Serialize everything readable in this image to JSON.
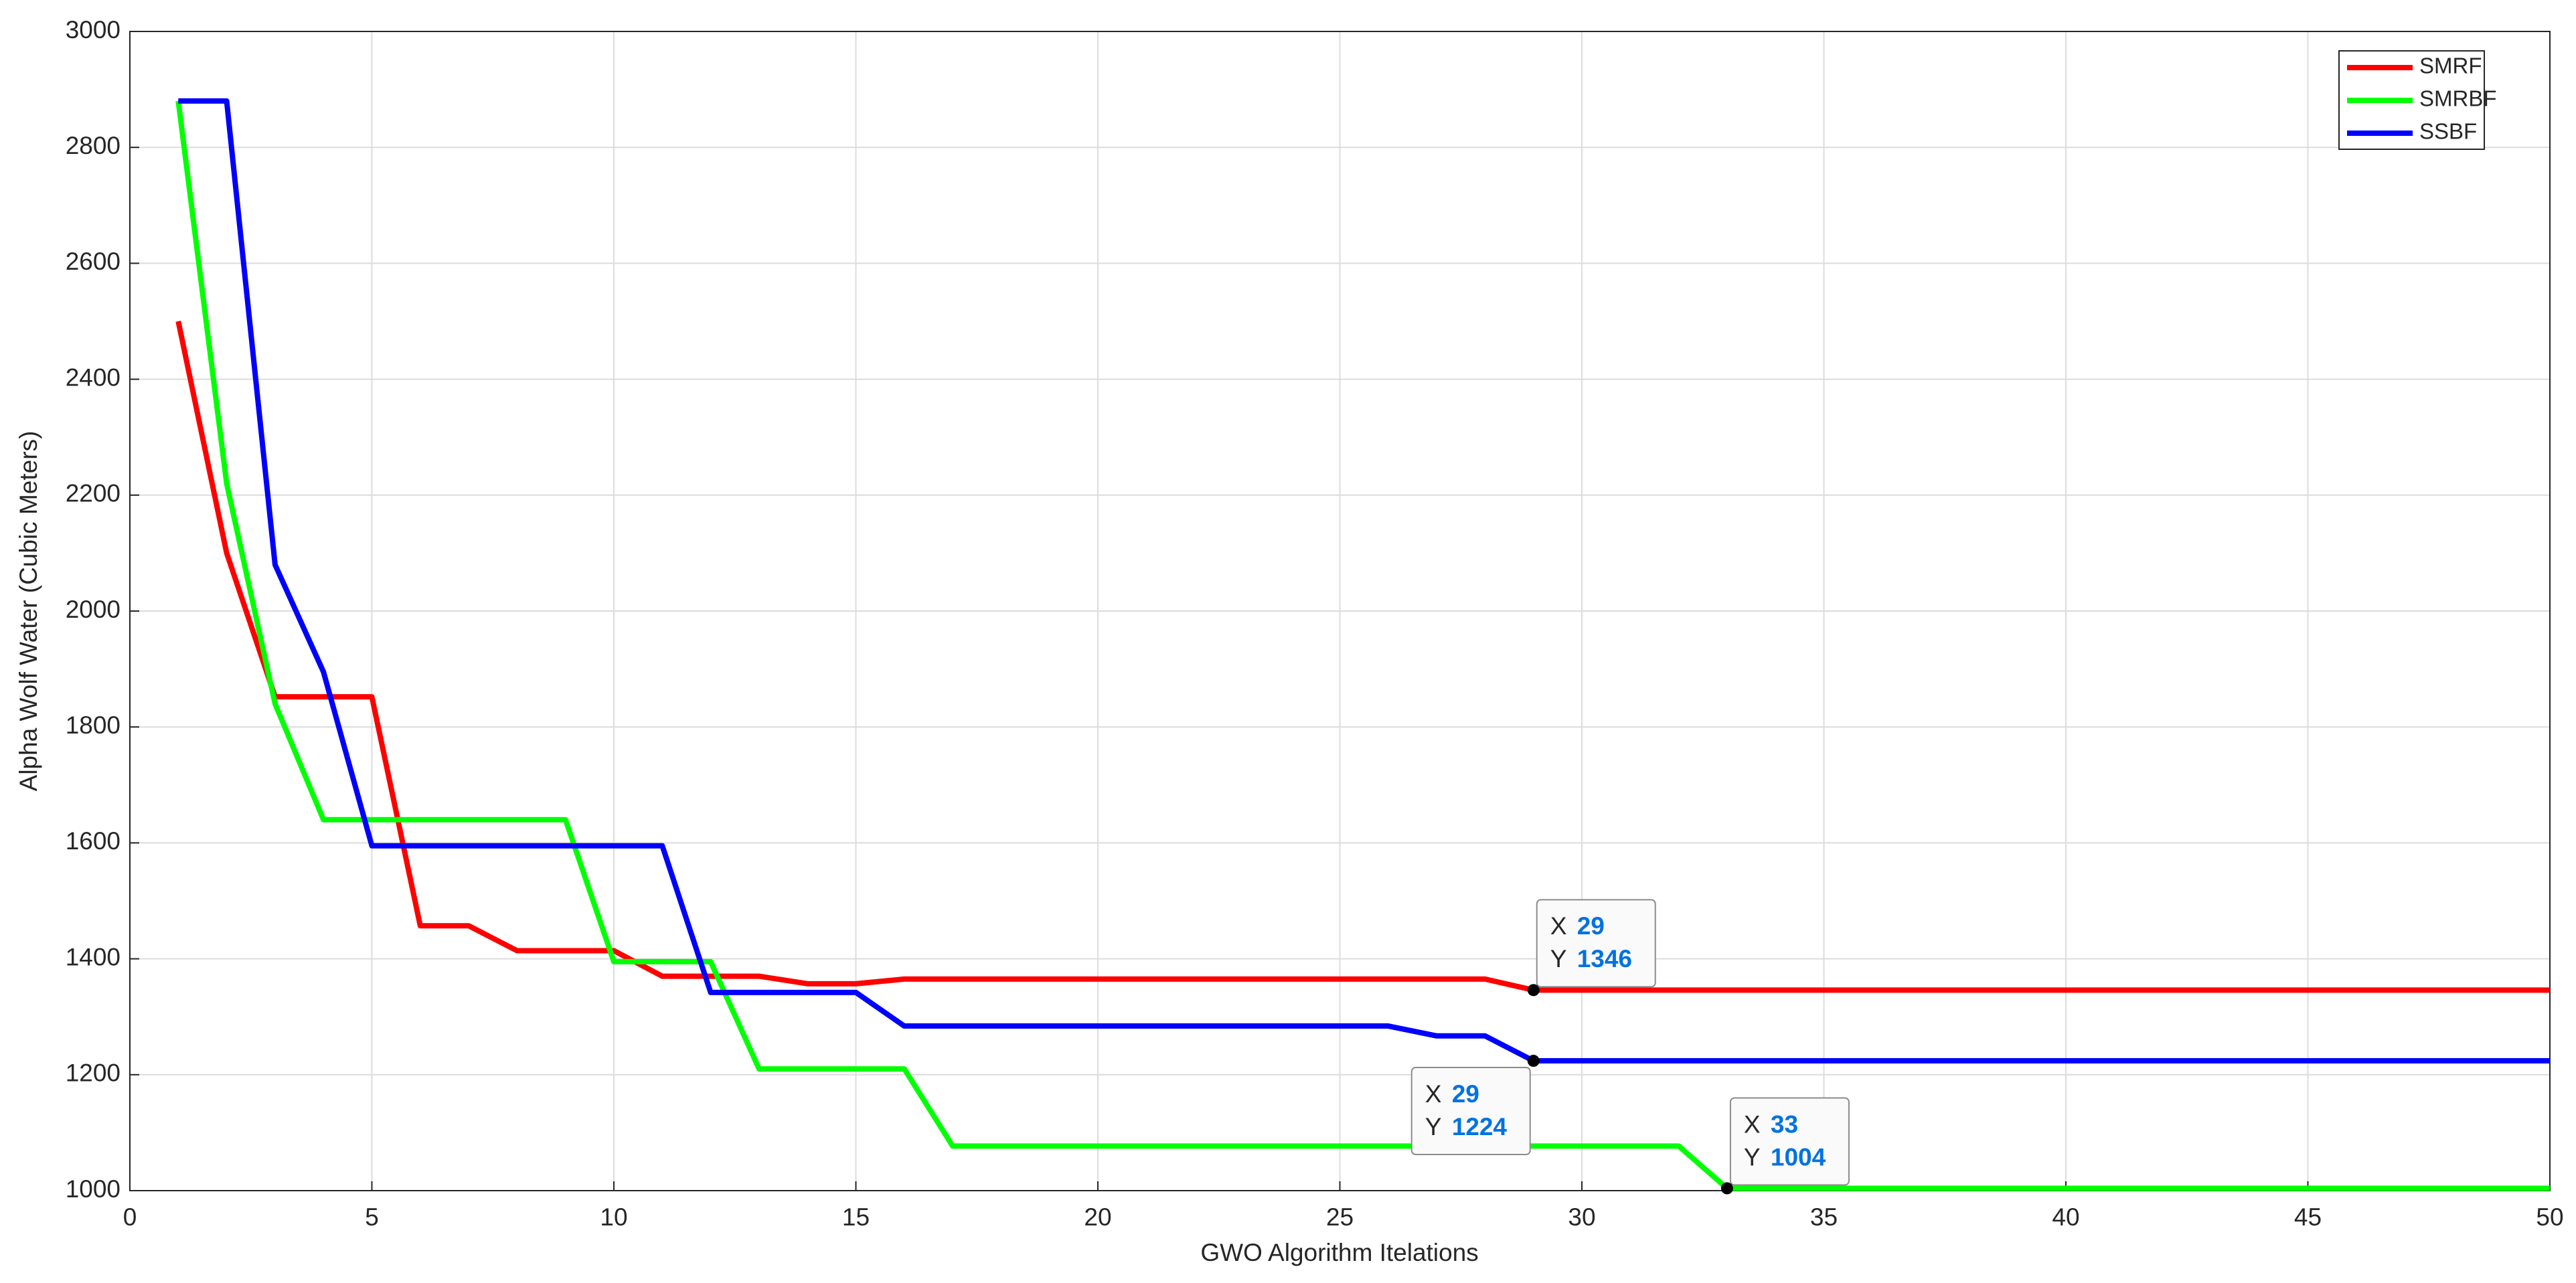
{
  "chart_data": {
    "type": "line",
    "x_label": "GWO Algorithm Itelations",
    "y_label": "Alpha Wolf Water (Cubic Meters)",
    "x": [
      1,
      2,
      3,
      4,
      5,
      6,
      7,
      8,
      9,
      10,
      11,
      12,
      13,
      14,
      15,
      16,
      17,
      18,
      19,
      20,
      21,
      22,
      23,
      24,
      25,
      26,
      27,
      28,
      29,
      30,
      31,
      32,
      33,
      34,
      35,
      36,
      37,
      38,
      39,
      40,
      41,
      42,
      43,
      44,
      45,
      46,
      47,
      48,
      49,
      50
    ],
    "series": [
      {
        "name": "SMRF",
        "color": "#ff0000",
        "values": [
          2500,
          2100,
          1852,
          1852,
          1852,
          1457,
          1457,
          1414,
          1414,
          1414,
          1370,
          1370,
          1370,
          1357,
          1357,
          1365,
          1365,
          1365,
          1365,
          1365,
          1365,
          1365,
          1365,
          1365,
          1365,
          1365,
          1365,
          1365,
          1346,
          1346,
          1346,
          1346,
          1346,
          1346,
          1346,
          1346,
          1346,
          1346,
          1346,
          1346,
          1346,
          1346,
          1346,
          1346,
          1346,
          1346,
          1346,
          1346,
          1346,
          1346
        ]
      },
      {
        "name": "SMRBF",
        "color": "#00ff00",
        "values": [
          2880,
          2220,
          1840,
          1640,
          1640,
          1640,
          1640,
          1640,
          1640,
          1395,
          1395,
          1395,
          1210,
          1210,
          1210,
          1210,
          1077,
          1077,
          1077,
          1077,
          1077,
          1077,
          1077,
          1077,
          1077,
          1077,
          1077,
          1077,
          1077,
          1077,
          1077,
          1077,
          1004,
          1004,
          1004,
          1004,
          1004,
          1004,
          1004,
          1004,
          1004,
          1004,
          1004,
          1004,
          1004,
          1004,
          1004,
          1004,
          1004,
          1004
        ]
      },
      {
        "name": "SSBF",
        "color": "#0000ff",
        "values": [
          2880,
          2880,
          2080,
          1895,
          1595,
          1595,
          1595,
          1595,
          1595,
          1595,
          1595,
          1342,
          1342,
          1342,
          1342,
          1284,
          1284,
          1284,
          1284,
          1284,
          1284,
          1284,
          1284,
          1284,
          1284,
          1284,
          1267,
          1267,
          1224,
          1224,
          1224,
          1224,
          1224,
          1224,
          1224,
          1224,
          1224,
          1224,
          1224,
          1224,
          1224,
          1224,
          1224,
          1224,
          1224,
          1224,
          1224,
          1224,
          1224,
          1224
        ]
      }
    ],
    "xlim": [
      0,
      50
    ],
    "xticks": [
      0,
      5,
      10,
      15,
      20,
      25,
      30,
      35,
      40,
      45,
      50
    ],
    "ylim": [
      1000,
      3000
    ],
    "yticks": [
      1000,
      1200,
      1400,
      1600,
      1800,
      2000,
      2200,
      2400,
      2600,
      2800,
      3000
    ],
    "grid": true,
    "legend": "top-right",
    "datatip_labels": [
      "X",
      "Y"
    ],
    "datatips": [
      {
        "x": 29,
        "y": 1346
      },
      {
        "x": 29,
        "y": 1224
      },
      {
        "x": 33,
        "y": 1004
      }
    ]
  }
}
